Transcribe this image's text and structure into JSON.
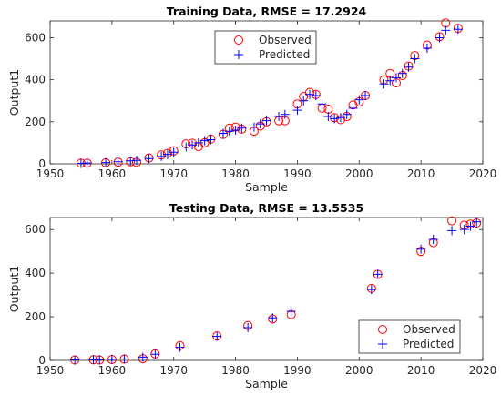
{
  "chart_data": [
    {
      "type": "scatter",
      "title": "Training Data, RMSE = 17.2924",
      "xlabel": "Sample",
      "ylabel": "Output1",
      "xlim": [
        1950,
        2020
      ],
      "ylim": [
        0,
        680
      ],
      "xticks": [
        1950,
        1960,
        1970,
        1980,
        1990,
        2000,
        2010,
        2020
      ],
      "yticks": [
        0,
        200,
        400,
        600
      ],
      "grid": false,
      "legend_position": "top-center",
      "series": [
        {
          "name": "Observed",
          "marker": "circle",
          "color": "#ff0000",
          "x": [
            1955,
            1956,
            1959,
            1961,
            1963,
            1964,
            1966,
            1968,
            1969,
            1970,
            1972,
            1973,
            1974,
            1975,
            1976,
            1978,
            1979,
            1980,
            1981,
            1983,
            1984,
            1985,
            1987,
            1988,
            1990,
            1991,
            1992,
            1993,
            1994,
            1995,
            1996,
            1997,
            1998,
            1999,
            2000,
            2001,
            2004,
            2005,
            2006,
            2007,
            2008,
            2009,
            2011,
            2013,
            2014,
            2016
          ],
          "y": [
            3,
            3,
            5,
            8,
            10,
            7,
            28,
            42,
            50,
            62,
            95,
            98,
            82,
            100,
            118,
            140,
            170,
            175,
            165,
            155,
            180,
            200,
            205,
            205,
            285,
            320,
            340,
            330,
            265,
            260,
            220,
            210,
            225,
            280,
            295,
            325,
            400,
            430,
            385,
            420,
            465,
            515,
            565,
            605,
            670,
            645
          ]
        },
        {
          "name": "Predicted",
          "marker": "plus",
          "color": "#0000ff",
          "x": [
            1955,
            1956,
            1959,
            1961,
            1963,
            1964,
            1966,
            1968,
            1969,
            1970,
            1972,
            1973,
            1974,
            1975,
            1976,
            1978,
            1979,
            1980,
            1981,
            1983,
            1984,
            1985,
            1987,
            1988,
            1990,
            1991,
            1992,
            1993,
            1994,
            1995,
            1996,
            1997,
            1998,
            1999,
            2000,
            2001,
            2004,
            2005,
            2006,
            2007,
            2008,
            2009,
            2011,
            2013,
            2014,
            2016
          ],
          "y": [
            2,
            4,
            6,
            10,
            14,
            16,
            25,
            35,
            45,
            55,
            80,
            90,
            100,
            110,
            115,
            145,
            155,
            160,
            170,
            175,
            190,
            205,
            225,
            235,
            255,
            300,
            330,
            325,
            285,
            225,
            215,
            220,
            235,
            265,
            305,
            325,
            380,
            395,
            410,
            430,
            460,
            500,
            550,
            600,
            635,
            640
          ]
        }
      ]
    },
    {
      "type": "scatter",
      "title": "Testing Data, RMSE = 13.5535",
      "xlabel": "Sample",
      "ylabel": "Output1",
      "xlim": [
        1950,
        2020
      ],
      "ylim": [
        0,
        655
      ],
      "xticks": [
        1950,
        1960,
        1970,
        1980,
        1990,
        2000,
        2010,
        2020
      ],
      "yticks": [
        0,
        200,
        400,
        600
      ],
      "grid": false,
      "legend_position": "bottom-right",
      "series": [
        {
          "name": "Observed",
          "marker": "circle",
          "color": "#ff0000",
          "x": [
            1954,
            1957,
            1958,
            1960,
            1962,
            1965,
            1967,
            1971,
            1977,
            1982,
            1986,
            1989,
            2002,
            2003,
            2010,
            2012,
            2015,
            2017,
            2018,
            2019
          ],
          "y": [
            2,
            3,
            2,
            4,
            6,
            8,
            30,
            68,
            112,
            160,
            190,
            210,
            330,
            395,
            500,
            540,
            640,
            620,
            625,
            630
          ]
        },
        {
          "name": "Predicted",
          "marker": "plus",
          "color": "#0000ff",
          "x": [
            1954,
            1957,
            1958,
            1960,
            1962,
            1965,
            1967,
            1971,
            1977,
            1982,
            1986,
            1989,
            2002,
            2003,
            2010,
            2012,
            2015,
            2017,
            2018,
            2019
          ],
          "y": [
            2,
            3,
            3,
            5,
            7,
            15,
            28,
            60,
            110,
            150,
            195,
            225,
            325,
            395,
            510,
            555,
            595,
            600,
            615,
            635
          ]
        }
      ]
    }
  ]
}
